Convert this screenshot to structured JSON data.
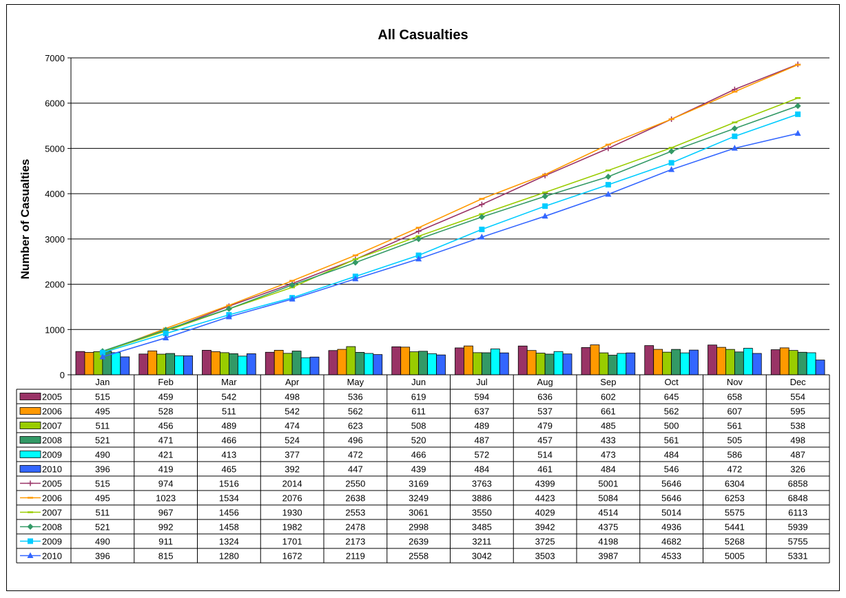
{
  "chart_data": {
    "type": "bar",
    "title": "All Casualties",
    "ylabel": "Number of Casualties",
    "xlabel": "",
    "ylim": [
      0,
      7000
    ],
    "yticks": [
      0,
      1000,
      2000,
      3000,
      4000,
      5000,
      6000,
      7000
    ],
    "gridlines": true,
    "legend": "data-table",
    "categories": [
      "Jan",
      "Feb",
      "Mar",
      "Apr",
      "May",
      "Jun",
      "Jul",
      "Aug",
      "Sep",
      "Oct",
      "Nov",
      "Dec"
    ],
    "bar_series": [
      {
        "name": "2005",
        "color": "#993366",
        "values": [
          515,
          459,
          542,
          498,
          536,
          619,
          594,
          636,
          602,
          645,
          658,
          554
        ]
      },
      {
        "name": "2006",
        "color": "#FF9900",
        "values": [
          495,
          528,
          511,
          542,
          562,
          611,
          637,
          537,
          661,
          562,
          607,
          595
        ]
      },
      {
        "name": "2007",
        "color": "#99CC00",
        "values": [
          511,
          456,
          489,
          474,
          623,
          508,
          489,
          479,
          485,
          500,
          561,
          538
        ]
      },
      {
        "name": "2008",
        "color": "#339966",
        "values": [
          521,
          471,
          466,
          524,
          496,
          520,
          487,
          457,
          433,
          561,
          505,
          498
        ]
      },
      {
        "name": "2009",
        "color": "#00FFFF",
        "values": [
          490,
          421,
          413,
          377,
          472,
          466,
          572,
          514,
          473,
          484,
          586,
          487
        ]
      },
      {
        "name": "2010",
        "color": "#3366FF",
        "values": [
          396,
          419,
          465,
          392,
          447,
          439,
          484,
          461,
          484,
          546,
          472,
          326
        ]
      }
    ],
    "line_series": [
      {
        "name": "2005",
        "color": "#993366",
        "marker": "plus",
        "values": [
          515,
          974,
          1516,
          2014,
          2550,
          3169,
          3763,
          4399,
          5001,
          5646,
          6304,
          6858
        ]
      },
      {
        "name": "2006",
        "color": "#FF9900",
        "marker": "dash",
        "values": [
          495,
          1023,
          1534,
          2076,
          2638,
          3249,
          3886,
          4423,
          5084,
          5646,
          6253,
          6848
        ]
      },
      {
        "name": "2007",
        "color": "#99CC00",
        "marker": "dash",
        "values": [
          511,
          967,
          1456,
          1930,
          2553,
          3061,
          3550,
          4029,
          4514,
          5014,
          5575,
          6113
        ]
      },
      {
        "name": "2008",
        "color": "#339966",
        "marker": "diamond",
        "values": [
          521,
          992,
          1458,
          1982,
          2478,
          2998,
          3485,
          3942,
          4375,
          4936,
          5441,
          5939
        ]
      },
      {
        "name": "2009",
        "color": "#00CCFF",
        "marker": "square",
        "values": [
          490,
          911,
          1324,
          1701,
          2173,
          2639,
          3211,
          3725,
          4198,
          4682,
          5268,
          5755
        ]
      },
      {
        "name": "2010",
        "color": "#3366FF",
        "marker": "triangle",
        "values": [
          396,
          815,
          1280,
          1672,
          2119,
          2558,
          3042,
          3503,
          3987,
          4533,
          5005,
          5331
        ]
      }
    ]
  }
}
